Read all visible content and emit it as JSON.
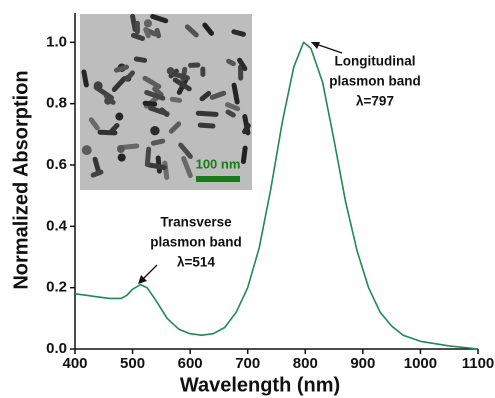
{
  "chart_data": {
    "type": "line",
    "x_label": "Wavelength (nm)",
    "y_label": "Normalized Absorption",
    "x": [
      400,
      420,
      440,
      460,
      480,
      490,
      500,
      514,
      525,
      540,
      560,
      580,
      600,
      620,
      640,
      660,
      680,
      700,
      720,
      740,
      760,
      780,
      797,
      810,
      830,
      850,
      870,
      890,
      910,
      930,
      950,
      970,
      1000,
      1050,
      1100
    ],
    "values": [
      0.18,
      0.175,
      0.17,
      0.165,
      0.165,
      0.175,
      0.195,
      0.21,
      0.2,
      0.16,
      0.1,
      0.065,
      0.05,
      0.045,
      0.05,
      0.07,
      0.12,
      0.2,
      0.33,
      0.52,
      0.74,
      0.92,
      1.0,
      0.98,
      0.87,
      0.68,
      0.48,
      0.32,
      0.2,
      0.12,
      0.075,
      0.045,
      0.025,
      0.01,
      0.0
    ],
    "color": "#1f8a55",
    "xlim": [
      400,
      1100
    ],
    "xticks": [
      400,
      500,
      600,
      700,
      800,
      900,
      1000,
      1100
    ],
    "ylim": [
      0,
      1.05
    ],
    "yticks": [
      {
        "value": 0,
        "label": "0.0"
      },
      0.2,
      0.4,
      0.6,
      0.8,
      {
        "value": 1,
        "label": "1.0"
      }
    ],
    "annotations": [
      {
        "lines": [
          "Longitudinal",
          "plasmon band",
          "λ=797"
        ]
      },
      {
        "lines": [
          "Transverse",
          "plasmon band",
          "λ=514"
        ]
      }
    ],
    "inset": {
      "scale_bar": "100 nm"
    }
  }
}
